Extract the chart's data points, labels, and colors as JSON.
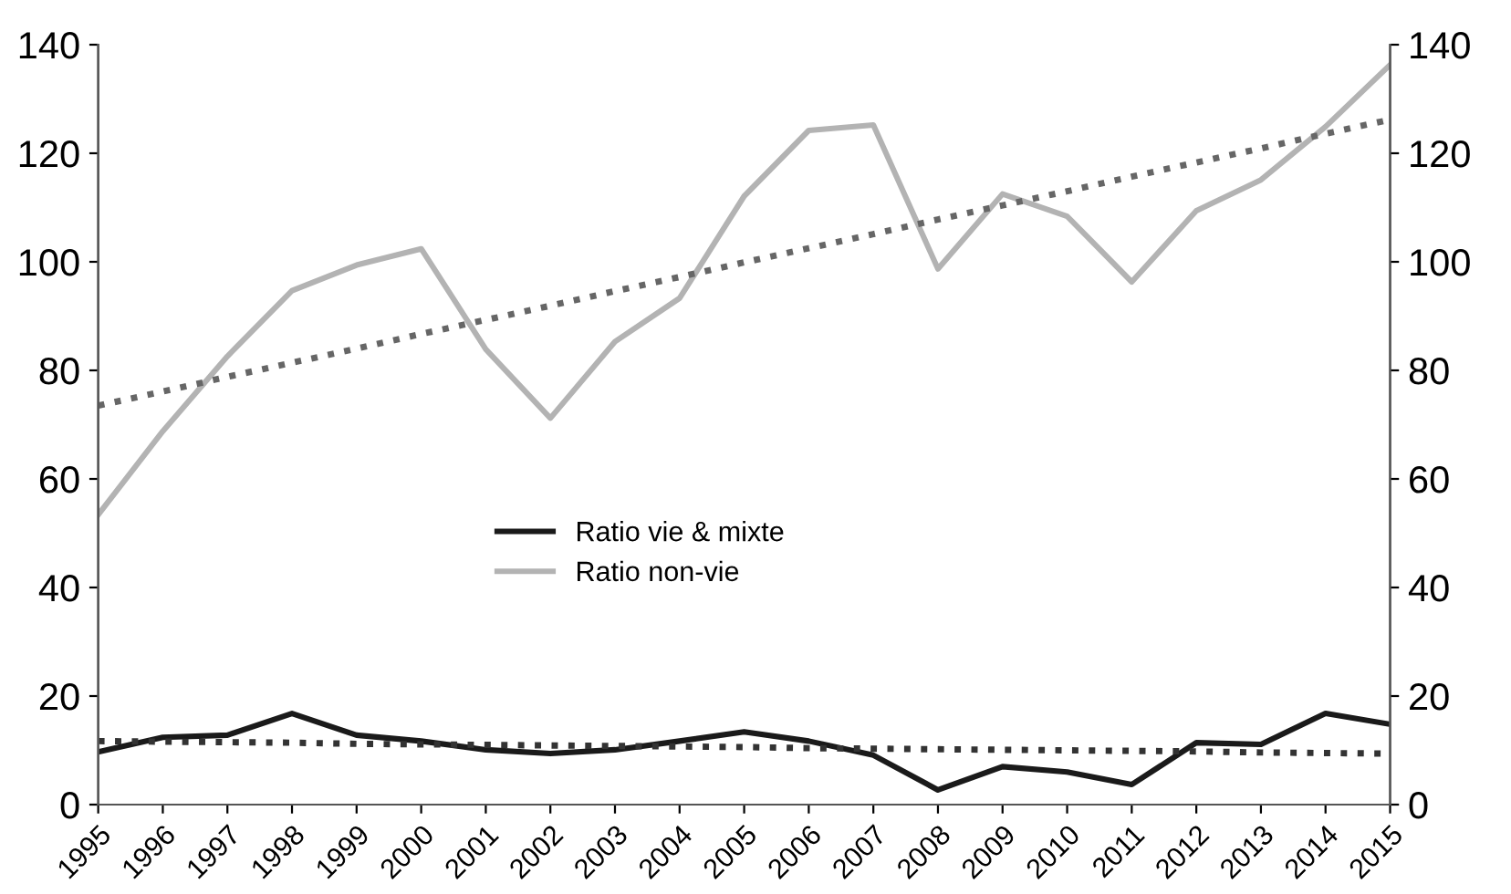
{
  "chart_data": {
    "type": "line",
    "categories": [
      "1995",
      "1996",
      "1997",
      "1998",
      "1999",
      "2000",
      "2001",
      "2002",
      "2003",
      "2004",
      "2005",
      "2006",
      "2007",
      "2008",
      "2009",
      "2010",
      "2011",
      "2012",
      "2013",
      "2014",
      "2015"
    ],
    "series": [
      {
        "name": "Ratio vie & mixte",
        "color": "#1a1a1a",
        "values": [
          9.7,
          12.4,
          12.8,
          16.8,
          12.8,
          11.7,
          10.1,
          9.4,
          10.1,
          11.7,
          13.4,
          11.7,
          9.1,
          2.7,
          7,
          6,
          3.7,
          11.4,
          11.1,
          16.8,
          14.8
        ]
      },
      {
        "name": "Ratio non-vie",
        "color": "#b3b3b3",
        "values": [
          53.4,
          68.8,
          82.6,
          94.7,
          99.4,
          102.4,
          83.9,
          71.2,
          85.3,
          93.3,
          112.1,
          124.2,
          125.2,
          98.7,
          112.5,
          108.4,
          96.3,
          109.4,
          115.1,
          124.9,
          136.3
        ]
      },
      {
        "type": "line",
        "line_style": "dotted",
        "color": "#666666",
        "values": [
          73.5,
          76.1,
          78.8,
          81.4,
          84.0,
          86.7,
          89.3,
          91.9,
          94.6,
          97.2,
          99.9,
          102.5,
          105.1,
          107.8,
          110.4,
          113.0,
          115.7,
          118.3,
          120.9,
          123.6,
          126.2
        ]
      },
      {
        "type": "line",
        "line_style": "dotted",
        "color": "#333333",
        "values": [
          11.7,
          11.6,
          11.5,
          11.4,
          11.2,
          11.1,
          11.0,
          10.9,
          10.8,
          10.7,
          10.6,
          10.4,
          10.3,
          10.2,
          10.1,
          10.0,
          9.9,
          9.8,
          9.6,
          9.5,
          9.4
        ]
      }
    ],
    "ylim": [
      0,
      140
    ],
    "yticks": [
      0,
      20,
      40,
      60,
      80,
      100,
      120,
      140
    ],
    "y2lim": [
      0,
      140
    ],
    "y2ticks": [
      0,
      20,
      40,
      60,
      80,
      100,
      120,
      140
    ],
    "grid": false,
    "legend": "center",
    "marker": "none",
    "line_style": "solid"
  }
}
